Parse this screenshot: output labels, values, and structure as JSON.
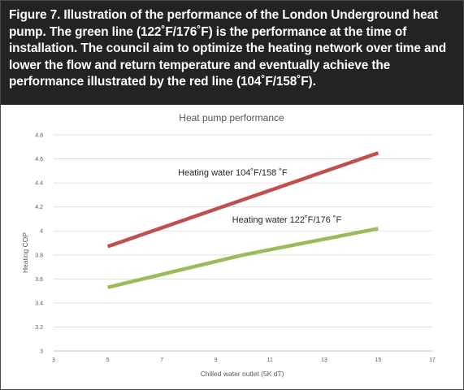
{
  "caption": {
    "text": "Figure 7. Illustration of the performance of the London Underground heat pump. The green line (122˚F/176˚F) is the performance at the time of installation. The council aim to optimize the heating network over time and lower the flow and return temperature and eventually achieve the performance illustrated by the red line (104˚F/158˚F)."
  },
  "colors": {
    "caption_bg": "#232323",
    "red_line": "#c0504d",
    "green_line": "#9bbb59"
  },
  "chart_data": {
    "type": "line",
    "title": "Heat pump performance",
    "xlabel": "Chilled water outlet (5K dT)",
    "ylabel": "Heating COP",
    "xlim": [
      3,
      17
    ],
    "ylim": [
      3,
      4.8
    ],
    "x_ticks": [
      "3",
      "5",
      "7",
      "9",
      "11",
      "13",
      "15",
      "17"
    ],
    "y_ticks": [
      "3",
      "3.2",
      "3.4",
      "3.6",
      "3.8",
      "4",
      "4.2",
      "4.4",
      "4.6",
      "4.8"
    ],
    "grid": "horizontal",
    "legend": "none",
    "series": [
      {
        "name": "Heating water 104˚F/158 ˚F",
        "color": "#c0504d",
        "x": [
          5,
          15
        ],
        "y": [
          3.87,
          4.65
        ]
      },
      {
        "name": "Heating water 122˚F/176 ˚F",
        "color": "#9bbb59",
        "x": [
          5,
          10,
          15
        ],
        "y": [
          3.53,
          3.8,
          4.02
        ]
      }
    ]
  }
}
